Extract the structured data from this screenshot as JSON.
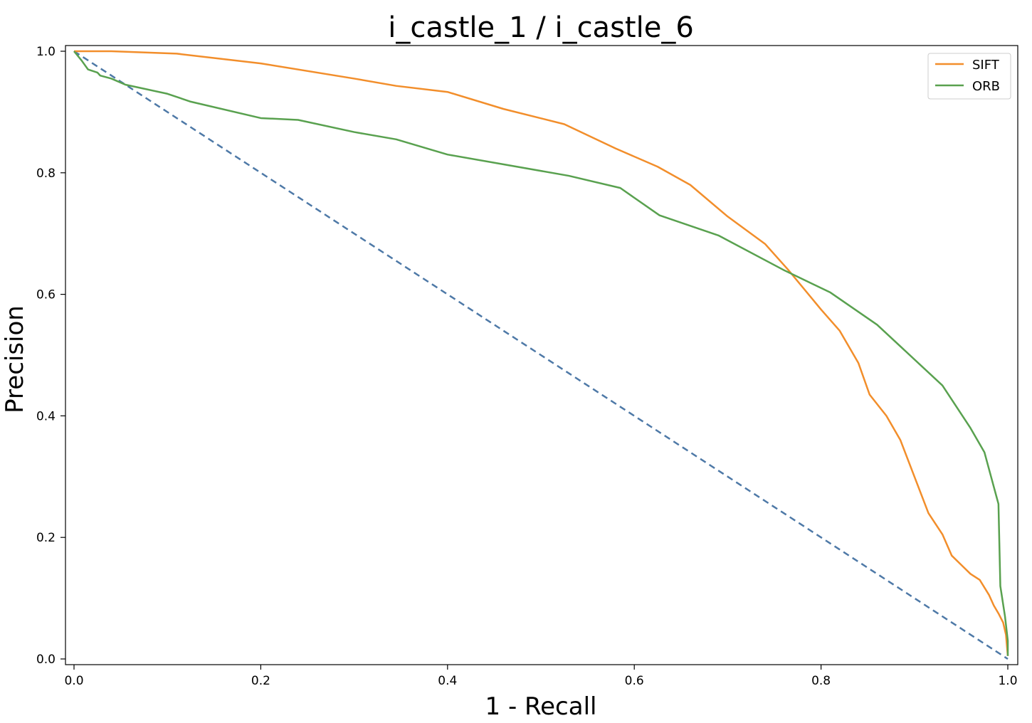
{
  "chart_data": {
    "type": "line",
    "title": "i_castle_1 / i_castle_6",
    "xlabel": "1 - Recall",
    "ylabel": "Precision",
    "xlim": [
      0.0,
      1.0
    ],
    "ylim": [
      0.0,
      1.0
    ],
    "xticks": [
      "0.0",
      "0.2",
      "0.4",
      "0.6",
      "0.8",
      "1.0"
    ],
    "yticks": [
      "0.0",
      "0.2",
      "0.4",
      "0.6",
      "0.8",
      "1.0"
    ],
    "grid": false,
    "legend_position": "top-right",
    "series": [
      {
        "name": "SIFT",
        "color": "#f28e2b",
        "style": "solid",
        "x": [
          0.0,
          0.04,
          0.11,
          0.2,
          0.3,
          0.345,
          0.4,
          0.46,
          0.525,
          0.58,
          0.625,
          0.66,
          0.7,
          0.74,
          0.765,
          0.8,
          0.82,
          0.84,
          0.852,
          0.87,
          0.885,
          0.9,
          0.915,
          0.93,
          0.94,
          0.95,
          0.96,
          0.97,
          0.98,
          0.985,
          0.99,
          0.995,
          0.998,
          1.0
        ],
        "y": [
          1.0,
          1.0,
          0.996,
          0.98,
          0.955,
          0.943,
          0.933,
          0.905,
          0.88,
          0.84,
          0.81,
          0.78,
          0.728,
          0.683,
          0.64,
          0.575,
          0.54,
          0.487,
          0.435,
          0.4,
          0.36,
          0.3,
          0.24,
          0.205,
          0.17,
          0.155,
          0.14,
          0.13,
          0.105,
          0.088,
          0.075,
          0.06,
          0.04,
          0.005
        ]
      },
      {
        "name": "ORB",
        "color": "#59a14f",
        "style": "solid",
        "x": [
          0.0,
          0.008,
          0.015,
          0.025,
          0.028,
          0.04,
          0.055,
          0.07,
          0.1,
          0.125,
          0.2,
          0.24,
          0.3,
          0.345,
          0.4,
          0.53,
          0.585,
          0.627,
          0.69,
          0.76,
          0.81,
          0.86,
          0.93,
          0.96,
          0.975,
          0.99,
          0.992,
          0.995,
          0.997,
          1.0,
          1.0
        ],
        "y": [
          1.0,
          0.985,
          0.97,
          0.965,
          0.96,
          0.955,
          0.945,
          0.94,
          0.93,
          0.917,
          0.89,
          0.887,
          0.867,
          0.855,
          0.83,
          0.795,
          0.775,
          0.73,
          0.697,
          0.64,
          0.603,
          0.55,
          0.45,
          0.38,
          0.34,
          0.255,
          0.12,
          0.09,
          0.07,
          0.03,
          0.005
        ]
      },
      {
        "name": "",
        "color": "#4e79a7",
        "style": "dashed",
        "x": [
          0.0,
          1.0
        ],
        "y": [
          1.0,
          0.0
        ]
      }
    ]
  }
}
